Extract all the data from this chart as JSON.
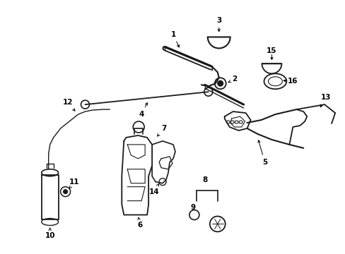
{
  "bg_color": "#ffffff",
  "line_color": "#1a1a1a",
  "fig_width": 4.89,
  "fig_height": 3.6,
  "dpi": 100,
  "fs_label": 7.5
}
